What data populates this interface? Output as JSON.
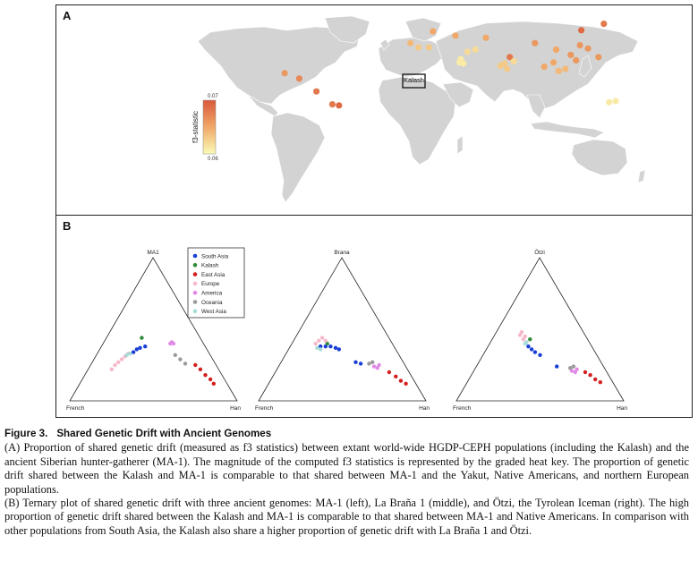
{
  "panel_a": {
    "letter": "A",
    "highlight_label": "Kalash",
    "colorbar": {
      "label": "f3-statistic",
      "max_label": "0.07",
      "min_label": "0.06",
      "color_high": "#d9593a",
      "color_low": "#fbfbb6"
    },
    "land_color": "#d3d3d3",
    "populations": [
      {
        "lon": -99,
        "lat": 21,
        "v": 0.066
      },
      {
        "lon": -88,
        "lat": 16,
        "v": 0.067
      },
      {
        "lon": -75,
        "lat": 4,
        "v": 0.068
      },
      {
        "lon": -63,
        "lat": -8,
        "v": 0.068
      },
      {
        "lon": -58,
        "lat": -9,
        "v": 0.069
      },
      {
        "lon": -4,
        "lat": 49,
        "v": 0.064
      },
      {
        "lon": 2,
        "lat": 45,
        "v": 0.063
      },
      {
        "lon": 10,
        "lat": 45,
        "v": 0.063
      },
      {
        "lon": 13,
        "lat": 60,
        "v": 0.065
      },
      {
        "lon": 30,
        "lat": 56,
        "v": 0.065
      },
      {
        "lon": 39,
        "lat": 41,
        "v": 0.062
      },
      {
        "lon": 45,
        "lat": 43,
        "v": 0.062
      },
      {
        "lon": 53,
        "lat": 54,
        "v": 0.065
      },
      {
        "lon": 34,
        "lat": 34,
        "v": 0.061
      },
      {
        "lon": 36,
        "lat": 30,
        "v": 0.061
      },
      {
        "lon": 33,
        "lat": 31,
        "v": 0.061
      },
      {
        "lon": 64,
        "lat": 28,
        "v": 0.063
      },
      {
        "lon": 67,
        "lat": 30,
        "v": 0.063
      },
      {
        "lon": 69,
        "lat": 25,
        "v": 0.063
      },
      {
        "lon": 71,
        "lat": 36,
        "v": 0.068
      },
      {
        "lon": 74,
        "lat": 32,
        "v": 0.062
      },
      {
        "lon": 90,
        "lat": 49,
        "v": 0.066
      },
      {
        "lon": 106,
        "lat": 43,
        "v": 0.065
      },
      {
        "lon": 125,
        "lat": 61,
        "v": 0.069
      },
      {
        "lon": 142,
        "lat": 67,
        "v": 0.068
      },
      {
        "lon": 124,
        "lat": 47,
        "v": 0.066
      },
      {
        "lon": 130,
        "lat": 44,
        "v": 0.066
      },
      {
        "lon": 117,
        "lat": 38,
        "v": 0.066
      },
      {
        "lon": 121,
        "lat": 33,
        "v": 0.066
      },
      {
        "lon": 104,
        "lat": 31,
        "v": 0.065
      },
      {
        "lon": 97,
        "lat": 27,
        "v": 0.065
      },
      {
        "lon": 108,
        "lat": 23,
        "v": 0.064
      },
      {
        "lon": 113,
        "lat": 25,
        "v": 0.064
      },
      {
        "lon": 138,
        "lat": 36,
        "v": 0.066
      },
      {
        "lon": 146,
        "lat": -6,
        "v": 0.061
      },
      {
        "lon": 151,
        "lat": -5,
        "v": 0.061
      }
    ]
  },
  "panel_b": {
    "letter": "B",
    "legend": [
      {
        "label": "South Asia",
        "color": "#1a3fd6"
      },
      {
        "label": "Kalash",
        "color": "#2e8b3a"
      },
      {
        "label": "East Asia",
        "color": "#d41f1f"
      },
      {
        "label": "Europe",
        "color": "#f5b8c8"
      },
      {
        "label": "America",
        "color": "#e08ae6"
      },
      {
        "label": "Oceania",
        "color": "#9a9a9a"
      },
      {
        "label": "West Asia",
        "color": "#a8dcd8"
      }
    ],
    "ternaries": [
      {
        "top_label": "MA1",
        "left_label": "French",
        "right_label": "Han",
        "points": [
          {
            "g": 0,
            "x": 0.4,
            "y": 0.36
          },
          {
            "g": 0,
            "x": 0.42,
            "y": 0.37
          },
          {
            "g": 0,
            "x": 0.45,
            "y": 0.38
          },
          {
            "g": 0,
            "x": 0.38,
            "y": 0.34
          },
          {
            "g": 1,
            "x": 0.43,
            "y": 0.44
          },
          {
            "g": 2,
            "x": 0.81,
            "y": 0.18
          },
          {
            "g": 2,
            "x": 0.84,
            "y": 0.15
          },
          {
            "g": 2,
            "x": 0.78,
            "y": 0.22
          },
          {
            "g": 2,
            "x": 0.86,
            "y": 0.12
          },
          {
            "g": 2,
            "x": 0.75,
            "y": 0.25
          },
          {
            "g": 3,
            "x": 0.27,
            "y": 0.25
          },
          {
            "g": 3,
            "x": 0.29,
            "y": 0.27
          },
          {
            "g": 3,
            "x": 0.31,
            "y": 0.29
          },
          {
            "g": 3,
            "x": 0.33,
            "y": 0.31
          },
          {
            "g": 3,
            "x": 0.25,
            "y": 0.22
          },
          {
            "g": 3,
            "x": 0.35,
            "y": 0.33
          },
          {
            "g": 4,
            "x": 0.6,
            "y": 0.4
          },
          {
            "g": 4,
            "x": 0.62,
            "y": 0.4
          },
          {
            "g": 4,
            "x": 0.61,
            "y": 0.41
          },
          {
            "g": 5,
            "x": 0.63,
            "y": 0.32
          },
          {
            "g": 5,
            "x": 0.66,
            "y": 0.29
          },
          {
            "g": 5,
            "x": 0.69,
            "y": 0.26
          },
          {
            "g": 6,
            "x": 0.34,
            "y": 0.32
          },
          {
            "g": 6,
            "x": 0.36,
            "y": 0.33
          }
        ]
      },
      {
        "top_label": "Brana",
        "left_label": "French",
        "right_label": "Han",
        "points": [
          {
            "g": 0,
            "x": 0.37,
            "y": 0.38
          },
          {
            "g": 0,
            "x": 0.4,
            "y": 0.38
          },
          {
            "g": 0,
            "x": 0.43,
            "y": 0.38
          },
          {
            "g": 0,
            "x": 0.46,
            "y": 0.37
          },
          {
            "g": 0,
            "x": 0.48,
            "y": 0.36
          },
          {
            "g": 0,
            "x": 0.58,
            "y": 0.27
          },
          {
            "g": 0,
            "x": 0.61,
            "y": 0.26
          },
          {
            "g": 1,
            "x": 0.41,
            "y": 0.4
          },
          {
            "g": 2,
            "x": 0.82,
            "y": 0.17
          },
          {
            "g": 2,
            "x": 0.85,
            "y": 0.14
          },
          {
            "g": 2,
            "x": 0.88,
            "y": 0.12
          },
          {
            "g": 2,
            "x": 0.78,
            "y": 0.2
          },
          {
            "g": 3,
            "x": 0.36,
            "y": 0.42
          },
          {
            "g": 3,
            "x": 0.38,
            "y": 0.44
          },
          {
            "g": 3,
            "x": 0.4,
            "y": 0.42
          },
          {
            "g": 3,
            "x": 0.34,
            "y": 0.4
          },
          {
            "g": 4,
            "x": 0.69,
            "y": 0.24
          },
          {
            "g": 4,
            "x": 0.71,
            "y": 0.23
          },
          {
            "g": 4,
            "x": 0.72,
            "y": 0.25
          },
          {
            "g": 5,
            "x": 0.66,
            "y": 0.26
          },
          {
            "g": 5,
            "x": 0.68,
            "y": 0.27
          },
          {
            "g": 6,
            "x": 0.35,
            "y": 0.37
          },
          {
            "g": 6,
            "x": 0.37,
            "y": 0.36
          }
        ]
      },
      {
        "top_label": "Ötzi",
        "left_label": "French",
        "right_label": "Han",
        "points": [
          {
            "g": 0,
            "x": 0.43,
            "y": 0.38
          },
          {
            "g": 0,
            "x": 0.45,
            "y": 0.36
          },
          {
            "g": 0,
            "x": 0.47,
            "y": 0.34
          },
          {
            "g": 0,
            "x": 0.5,
            "y": 0.32
          },
          {
            "g": 0,
            "x": 0.6,
            "y": 0.24
          },
          {
            "g": 1,
            "x": 0.44,
            "y": 0.43
          },
          {
            "g": 2,
            "x": 0.83,
            "y": 0.15
          },
          {
            "g": 2,
            "x": 0.86,
            "y": 0.13
          },
          {
            "g": 2,
            "x": 0.8,
            "y": 0.18
          },
          {
            "g": 2,
            "x": 0.77,
            "y": 0.2
          },
          {
            "g": 3,
            "x": 0.38,
            "y": 0.46
          },
          {
            "g": 3,
            "x": 0.39,
            "y": 0.48
          },
          {
            "g": 3,
            "x": 0.41,
            "y": 0.45
          },
          {
            "g": 3,
            "x": 0.4,
            "y": 0.43
          },
          {
            "g": 4,
            "x": 0.69,
            "y": 0.21
          },
          {
            "g": 4,
            "x": 0.71,
            "y": 0.2
          },
          {
            "g": 4,
            "x": 0.72,
            "y": 0.22
          },
          {
            "g": 5,
            "x": 0.68,
            "y": 0.23
          },
          {
            "g": 5,
            "x": 0.7,
            "y": 0.24
          },
          {
            "g": 6,
            "x": 0.41,
            "y": 0.4
          },
          {
            "g": 6,
            "x": 0.42,
            "y": 0.41
          }
        ]
      }
    ]
  },
  "caption": {
    "figure_number": "Figure 3.",
    "title": "Shared Genetic Drift with Ancient Genomes",
    "p1": "(A) Proportion of shared genetic drift (measured as f3 statistics) between extant world-wide HGDP-CEPH populations (including the Kalash) and the ancient Siberian hunter-gatherer (MA-1). The magnitude of the computed f3 statistics is represented by the graded heat key. The proportion of genetic drift shared between the Kalash and MA-1 is comparable to that shared between MA-1 and the Yakut, Native Americans, and northern European populations.",
    "p2": "(B) Ternary plot of shared genetic drift with three ancient genomes: MA-1 (left), La Braña 1 (middle), and Ötzi, the Tyrolean Iceman (right). The high proportion of genetic drift shared between the Kalash and MA-1 is comparable to that shared between MA-1 and Native Americans. In comparison with other populations from South Asia, the Kalash also share a higher proportion of genetic drift with La Braña 1 and Ötzi."
  }
}
